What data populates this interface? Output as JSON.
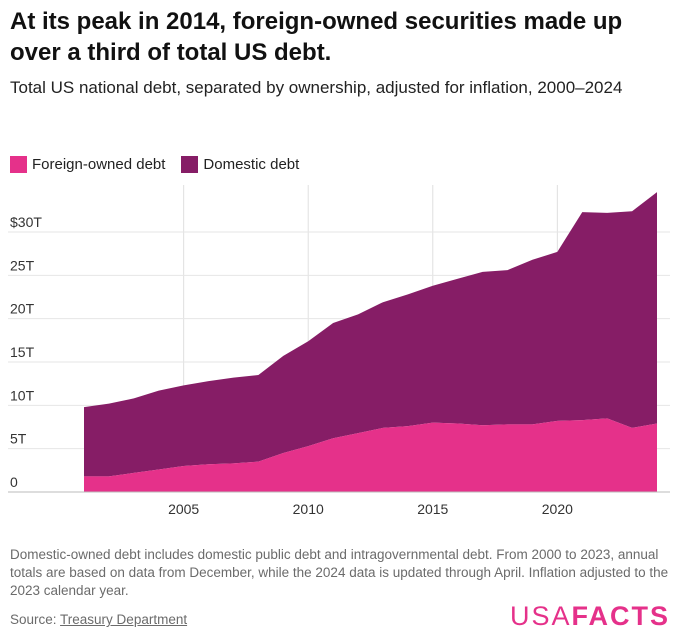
{
  "header": {
    "title": "At its peak in 2014, foreign-owned securities made up over a third of total US debt.",
    "subtitle": "Total US national debt, separated by ownership, adjusted for inflation, 2000–2024"
  },
  "legend": {
    "items": [
      {
        "label": "Foreign-owned debt",
        "color": "#e5318a"
      },
      {
        "label": "Domestic debt",
        "color": "#861d66"
      }
    ]
  },
  "chart_data": {
    "type": "area",
    "stacked": true,
    "x": [
      2001,
      2002,
      2003,
      2004,
      2005,
      2006,
      2007,
      2008,
      2009,
      2010,
      2011,
      2012,
      2013,
      2014,
      2015,
      2016,
      2017,
      2018,
      2019,
      2020,
      2021,
      2022,
      2023,
      2024
    ],
    "series": [
      {
        "name": "Foreign-owned debt",
        "color": "#e5318a",
        "values": [
          1.8,
          1.8,
          2.2,
          2.6,
          3.0,
          3.2,
          3.3,
          3.5,
          4.5,
          5.3,
          6.2,
          6.8,
          7.4,
          7.6,
          8.0,
          7.9,
          7.7,
          7.8,
          7.8,
          8.2,
          8.3,
          8.5,
          7.4,
          7.9
        ]
      },
      {
        "name": "Domestic debt",
        "color": "#861d66",
        "values": [
          8.0,
          8.4,
          8.6,
          9.1,
          9.3,
          9.6,
          9.9,
          10.0,
          11.2,
          12.1,
          13.3,
          13.7,
          14.5,
          15.2,
          15.8,
          16.7,
          17.7,
          17.8,
          19.0,
          19.5,
          24.0,
          23.7,
          25.0,
          26.7
        ]
      }
    ],
    "x_ticks": [
      2005,
      2010,
      2015,
      2020
    ],
    "y_ticks": [
      0,
      5,
      10,
      15,
      20,
      25,
      30
    ],
    "y_tick_labels": [
      "0",
      "5T",
      "10T",
      "15T",
      "20T",
      "25T",
      "$30T"
    ],
    "ylim": [
      0,
      33
    ],
    "xlim": [
      2000,
      2024
    ],
    "grid": "vertical"
  },
  "footer": {
    "note": "Domestic-owned debt includes domestic public debt and intragovernmental debt. From 2000 to 2023, annual totals are based on data from December, while the 2024 data is updated through April. Inflation adjusted to the 2023 calendar year.",
    "source_prefix": "Source: ",
    "source_link": "Treasury Department",
    "logo_light": "USA",
    "logo_bold": "FACTS"
  }
}
